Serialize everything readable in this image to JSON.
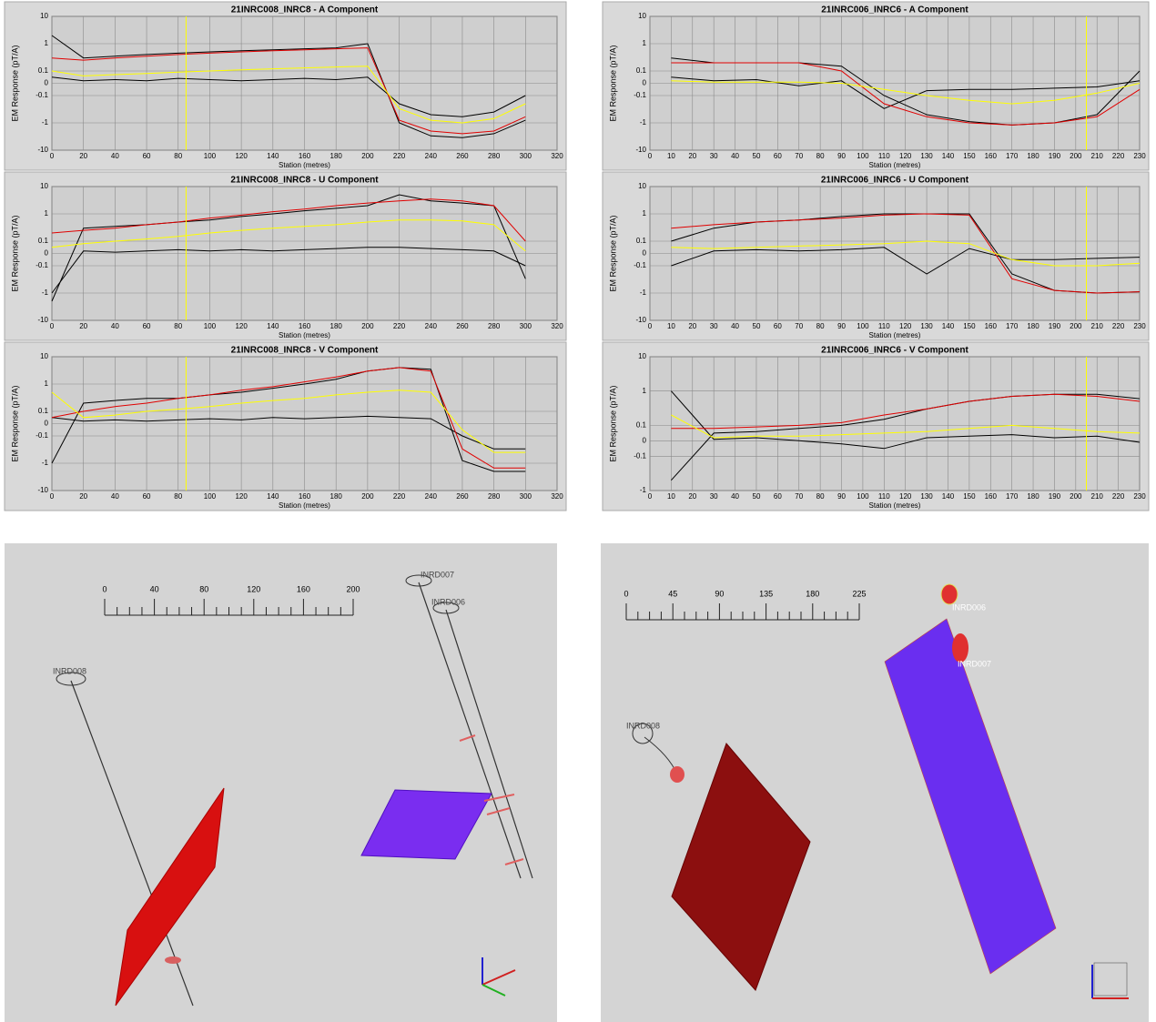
{
  "chart_data": [
    {
      "type": "line",
      "title": "21INRC008_INRC8 - A Component",
      "xlabel": "Station (metres)",
      "ylabel": "EM Response (pT/A)",
      "x": [
        0,
        20,
        40,
        60,
        80,
        100,
        120,
        140,
        160,
        180,
        200,
        220,
        240,
        260,
        280,
        300
      ],
      "xlim": [
        0,
        320
      ],
      "xticks": [
        0,
        20,
        40,
        60,
        80,
        100,
        120,
        140,
        160,
        180,
        200,
        220,
        240,
        260,
        280,
        300,
        320
      ],
      "ylim": [
        -10,
        10
      ],
      "yticks": [
        10,
        1,
        0.1,
        0,
        -0.1,
        -1,
        -10
      ],
      "yscale": "symlog",
      "grid": true,
      "cursor_x": 85,
      "series": [
        {
          "color": "#000000",
          "values": [
            2,
            0.3,
            0.35,
            0.4,
            0.45,
            0.5,
            0.55,
            0.6,
            0.65,
            0.7,
            1,
            -1,
            -3,
            -3.5,
            -2.5,
            -0.8
          ]
        },
        {
          "color": "#000000",
          "values": [
            0.05,
            0.02,
            0.03,
            0.02,
            0.04,
            0.03,
            0.02,
            0.03,
            0.04,
            0.03,
            0.05,
            -0.2,
            -0.5,
            -0.6,
            -0.4,
            -0.1
          ]
        },
        {
          "color": "#e00000",
          "values": [
            0.3,
            0.25,
            0.3,
            0.35,
            0.4,
            0.45,
            0.5,
            0.55,
            0.6,
            0.65,
            0.7,
            -0.8,
            -2,
            -2.5,
            -2,
            -0.6
          ]
        },
        {
          "color": "#ffff00",
          "values": [
            0.1,
            0.06,
            0.07,
            0.08,
            0.09,
            0.1,
            0.11,
            0.12,
            0.13,
            0.14,
            0.15,
            -0.3,
            -0.8,
            -1,
            -0.7,
            -0.2
          ]
        }
      ]
    },
    {
      "type": "line",
      "title": "21INRC008_INRC8 - U Component",
      "xlabel": "Station (metres)",
      "ylabel": "EM Response (pT/A)",
      "x": [
        0,
        20,
        40,
        60,
        80,
        100,
        120,
        140,
        160,
        180,
        200,
        220,
        240,
        260,
        280,
        300
      ],
      "xlim": [
        0,
        320
      ],
      "xticks": [
        0,
        20,
        40,
        60,
        80,
        100,
        120,
        140,
        160,
        180,
        200,
        220,
        240,
        260,
        280,
        300,
        320
      ],
      "ylim": [
        -10,
        10
      ],
      "yticks": [
        10,
        1,
        0.1,
        0,
        -0.1,
        -1,
        -10
      ],
      "yscale": "symlog",
      "grid": true,
      "cursor_x": 85,
      "series": [
        {
          "color": "#000000",
          "values": [
            -2,
            0.3,
            0.35,
            0.4,
            0.5,
            0.6,
            0.8,
            1,
            1.3,
            1.6,
            2,
            5,
            3,
            2.5,
            2,
            -0.3
          ]
        },
        {
          "color": "#000000",
          "values": [
            -1,
            0.02,
            0.01,
            0.02,
            0.03,
            0.02,
            0.03,
            0.02,
            0.03,
            0.04,
            0.05,
            0.05,
            0.04,
            0.03,
            0.02,
            -0.1
          ]
        },
        {
          "color": "#e00000",
          "values": [
            0.2,
            0.25,
            0.3,
            0.4,
            0.5,
            0.7,
            0.9,
            1.2,
            1.5,
            2,
            2.5,
            3,
            3.5,
            3,
            2,
            0.1
          ]
        },
        {
          "color": "#ffff00",
          "values": [
            0.05,
            0.08,
            0.1,
            0.12,
            0.15,
            0.2,
            0.25,
            0.3,
            0.35,
            0.4,
            0.5,
            0.6,
            0.6,
            0.55,
            0.4,
            0.02
          ]
        }
      ]
    },
    {
      "type": "line",
      "title": "21INRC008_INRC8 - V Component",
      "xlabel": "Station (metres)",
      "ylabel": "EM Response (pT/A)",
      "x": [
        0,
        20,
        40,
        60,
        80,
        100,
        120,
        140,
        160,
        180,
        200,
        220,
        240,
        260,
        280,
        300
      ],
      "xlim": [
        0,
        320
      ],
      "xticks": [
        0,
        20,
        40,
        60,
        80,
        100,
        120,
        140,
        160,
        180,
        200,
        220,
        240,
        260,
        280,
        300,
        320
      ],
      "ylim": [
        -10,
        10
      ],
      "yticks": [
        10,
        1,
        0.1,
        0,
        -0.1,
        -1,
        -10
      ],
      "yscale": "symlog",
      "grid": true,
      "cursor_x": 85,
      "series": [
        {
          "color": "#000000",
          "values": [
            -1,
            0.2,
            0.25,
            0.3,
            0.3,
            0.4,
            0.5,
            0.7,
            1,
            1.5,
            3,
            4,
            3.5,
            -0.8,
            -2,
            -2
          ]
        },
        {
          "color": "#000000",
          "values": [
            0.05,
            0.02,
            0.03,
            0.02,
            0.03,
            0.04,
            0.03,
            0.05,
            0.04,
            0.05,
            0.06,
            0.05,
            0.04,
            -0.1,
            -0.3,
            -0.3
          ]
        },
        {
          "color": "#e00000",
          "values": [
            0.05,
            0.1,
            0.15,
            0.2,
            0.3,
            0.4,
            0.6,
            0.8,
            1.2,
            1.8,
            3,
            4,
            3,
            -0.3,
            -1.5,
            -1.5
          ]
        },
        {
          "color": "#ffff00",
          "values": [
            0.5,
            0.05,
            0.07,
            0.1,
            0.12,
            0.15,
            0.2,
            0.25,
            0.3,
            0.4,
            0.5,
            0.6,
            0.5,
            -0.05,
            -0.4,
            -0.4
          ]
        }
      ]
    },
    {
      "type": "line",
      "title": "21INRC006_INRC6 - A Component",
      "xlabel": "Station (metres)",
      "ylabel": "EM Response (pT/A)",
      "x": [
        10,
        30,
        50,
        70,
        90,
        110,
        130,
        150,
        170,
        190,
        210,
        230
      ],
      "xlim": [
        0,
        230
      ],
      "xticks": [
        0,
        10,
        20,
        30,
        40,
        50,
        60,
        70,
        80,
        90,
        100,
        110,
        120,
        130,
        140,
        150,
        160,
        170,
        180,
        190,
        200,
        210,
        220,
        230
      ],
      "ylim": [
        -10,
        10
      ],
      "yticks": [
        10,
        1,
        0.1,
        0,
        -0.1,
        -1,
        -10
      ],
      "yscale": "symlog",
      "grid": true,
      "cursor_x": 205,
      "series": [
        {
          "color": "#000000",
          "values": [
            0.3,
            0.2,
            0.2,
            0.2,
            0.15,
            -0.1,
            -0.5,
            -0.9,
            -1.2,
            -1,
            -0.5,
            0.1
          ]
        },
        {
          "color": "#000000",
          "values": [
            0.05,
            0.02,
            0.03,
            -0.02,
            0.02,
            -0.3,
            -0.06,
            -0.05,
            -0.05,
            -0.04,
            -0.03,
            0.02
          ]
        },
        {
          "color": "#e00000",
          "values": [
            0.2,
            0.2,
            0.2,
            0.2,
            0.1,
            -0.2,
            -0.6,
            -1,
            -1.2,
            -1,
            -0.6,
            -0.05
          ]
        },
        {
          "color": "#ffff00",
          "values": [
            0.02,
            0.01,
            0.01,
            0.01,
            0,
            -0.05,
            -0.1,
            -0.15,
            -0.2,
            -0.15,
            -0.08,
            0
          ]
        }
      ]
    },
    {
      "type": "line",
      "title": "21INRC006_INRC6 - U Component",
      "xlabel": "Station (metres)",
      "ylabel": "EM Response (pT/A)",
      "x": [
        10,
        30,
        50,
        70,
        90,
        110,
        130,
        150,
        170,
        190,
        210,
        230
      ],
      "xlim": [
        0,
        230
      ],
      "xticks": [
        0,
        10,
        20,
        30,
        40,
        50,
        60,
        70,
        80,
        90,
        100,
        110,
        120,
        130,
        140,
        150,
        160,
        170,
        180,
        190,
        200,
        210,
        220,
        230
      ],
      "ylim": [
        -10,
        10
      ],
      "yticks": [
        10,
        1,
        0.1,
        0,
        -0.1,
        -1,
        -10
      ],
      "yscale": "symlog",
      "grid": true,
      "cursor_x": 205,
      "series": [
        {
          "color": "#000000",
          "values": [
            0.1,
            0.3,
            0.5,
            0.6,
            0.8,
            1,
            1,
            1,
            -0.2,
            -0.8,
            -1,
            -0.9
          ]
        },
        {
          "color": "#000000",
          "values": [
            -0.1,
            0.02,
            0.03,
            0.02,
            0.03,
            0.05,
            -0.2,
            0.04,
            -0.05,
            -0.05,
            -0.04,
            -0.03
          ]
        },
        {
          "color": "#e00000",
          "values": [
            0.3,
            0.4,
            0.5,
            0.6,
            0.7,
            0.9,
            1,
            0.9,
            -0.3,
            -0.8,
            -1,
            -0.9
          ]
        },
        {
          "color": "#ffff00",
          "values": [
            0.05,
            0.04,
            0.05,
            0.06,
            0.07,
            0.08,
            0.1,
            0.08,
            -0.05,
            -0.1,
            -0.1,
            -0.08
          ]
        }
      ]
    },
    {
      "type": "line",
      "title": "21INRC006_INRC6 - V Component",
      "xlabel": "Station (metres)",
      "ylabel": "EM Response (pT/A)",
      "x": [
        10,
        30,
        50,
        70,
        90,
        110,
        130,
        150,
        170,
        190,
        210,
        230
      ],
      "xlim": [
        0,
        230
      ],
      "xticks": [
        0,
        10,
        20,
        30,
        40,
        50,
        60,
        70,
        80,
        90,
        100,
        110,
        120,
        130,
        140,
        150,
        160,
        170,
        180,
        190,
        200,
        210,
        220,
        230
      ],
      "ylim": [
        -1,
        10
      ],
      "yticks": [
        10,
        1,
        0.1,
        0,
        -0.1,
        -1
      ],
      "yscale": "symlog",
      "grid": true,
      "cursor_x": 205,
      "series": [
        {
          "color": "#000000",
          "values": [
            -0.5,
            0.05,
            0.06,
            0.08,
            0.1,
            0.15,
            0.3,
            0.5,
            0.7,
            0.8,
            0.8,
            0.6
          ]
        },
        {
          "color": "#000000",
          "values": [
            1,
            0.01,
            0.02,
            0,
            -0.02,
            -0.05,
            0.02,
            0.03,
            0.04,
            0.02,
            0.03,
            -0.01
          ]
        },
        {
          "color": "#e00000",
          "values": [
            0.08,
            0.08,
            0.09,
            0.1,
            0.12,
            0.2,
            0.3,
            0.5,
            0.7,
            0.8,
            0.7,
            0.5
          ]
        },
        {
          "color": "#ffff00",
          "values": [
            0.2,
            0.02,
            0.03,
            0.03,
            0.04,
            0.05,
            0.06,
            0.08,
            0.1,
            0.08,
            0.06,
            0.05
          ]
        }
      ]
    }
  ],
  "scenes": [
    {
      "scale_ticks": [
        0,
        40,
        80,
        120,
        160,
        200
      ],
      "labels": [
        "INRD007",
        "INRD006",
        "INRD008"
      ]
    },
    {
      "scale_ticks": [
        0,
        45,
        90,
        135,
        180,
        225
      ],
      "labels": [
        "INRD008",
        "INRD006",
        "INRD007"
      ]
    }
  ]
}
